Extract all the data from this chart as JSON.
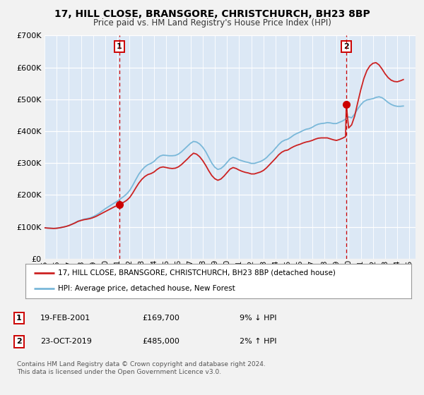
{
  "title": "17, HILL CLOSE, BRANSGORE, CHRISTCHURCH, BH23 8BP",
  "subtitle": "Price paid vs. HM Land Registry's House Price Index (HPI)",
  "background_color": "#f2f2f2",
  "plot_bg": "#dce8f5",
  "ylim": [
    0,
    700000
  ],
  "yticks": [
    0,
    100000,
    200000,
    300000,
    400000,
    500000,
    600000,
    700000
  ],
  "ytick_labels": [
    "£0",
    "£100K",
    "£200K",
    "£300K",
    "£400K",
    "£500K",
    "£600K",
    "£700K"
  ],
  "sale1_year": 2001.13,
  "sale1_price": 169700,
  "sale2_year": 2019.81,
  "sale2_price": 485000,
  "hpi_color": "#7ab8d9",
  "price_color": "#cc2222",
  "marker_color": "#cc0000",
  "legend_label1": "17, HILL CLOSE, BRANSGORE, CHRISTCHURCH, BH23 8BP (detached house)",
  "legend_label2": "HPI: Average price, detached house, New Forest",
  "ann1_num": "1",
  "ann1_date": "19-FEB-2001",
  "ann1_price": "£169,700",
  "ann1_hpi": "9% ↓ HPI",
  "ann2_num": "2",
  "ann2_date": "23-OCT-2019",
  "ann2_price": "£485,000",
  "ann2_hpi": "2% ↑ HPI",
  "footnote": "Contains HM Land Registry data © Crown copyright and database right 2024.\nThis data is licensed under the Open Government Licence v3.0.",
  "hpi_data": [
    [
      1995.0,
      97000
    ],
    [
      1995.25,
      96500
    ],
    [
      1995.5,
      96000
    ],
    [
      1995.75,
      95500
    ],
    [
      1996.0,
      96000
    ],
    [
      1996.25,
      97000
    ],
    [
      1996.5,
      99000
    ],
    [
      1996.75,
      101000
    ],
    [
      1997.0,
      104000
    ],
    [
      1997.25,
      108000
    ],
    [
      1997.5,
      113000
    ],
    [
      1997.75,
      118000
    ],
    [
      1998.0,
      121000
    ],
    [
      1998.25,
      124000
    ],
    [
      1998.5,
      126000
    ],
    [
      1998.75,
      128000
    ],
    [
      1999.0,
      132000
    ],
    [
      1999.25,
      137000
    ],
    [
      1999.5,
      143000
    ],
    [
      1999.75,
      150000
    ],
    [
      2000.0,
      157000
    ],
    [
      2000.25,
      163000
    ],
    [
      2000.5,
      169000
    ],
    [
      2000.75,
      175000
    ],
    [
      2001.0,
      181000
    ],
    [
      2001.25,
      188000
    ],
    [
      2001.5,
      195000
    ],
    [
      2001.75,
      203000
    ],
    [
      2002.0,
      214000
    ],
    [
      2002.25,
      230000
    ],
    [
      2002.5,
      248000
    ],
    [
      2002.75,
      265000
    ],
    [
      2003.0,
      278000
    ],
    [
      2003.25,
      288000
    ],
    [
      2003.5,
      295000
    ],
    [
      2003.75,
      299000
    ],
    [
      2004.0,
      305000
    ],
    [
      2004.25,
      315000
    ],
    [
      2004.5,
      322000
    ],
    [
      2004.75,
      325000
    ],
    [
      2005.0,
      324000
    ],
    [
      2005.25,
      323000
    ],
    [
      2005.5,
      323000
    ],
    [
      2005.75,
      324000
    ],
    [
      2006.0,
      328000
    ],
    [
      2006.25,
      335000
    ],
    [
      2006.5,
      344000
    ],
    [
      2006.75,
      353000
    ],
    [
      2007.0,
      362000
    ],
    [
      2007.25,
      368000
    ],
    [
      2007.5,
      366000
    ],
    [
      2007.75,
      360000
    ],
    [
      2008.0,
      350000
    ],
    [
      2008.25,
      336000
    ],
    [
      2008.5,
      318000
    ],
    [
      2008.75,
      300000
    ],
    [
      2009.0,
      287000
    ],
    [
      2009.25,
      280000
    ],
    [
      2009.5,
      283000
    ],
    [
      2009.75,
      291000
    ],
    [
      2010.0,
      302000
    ],
    [
      2010.25,
      313000
    ],
    [
      2010.5,
      318000
    ],
    [
      2010.75,
      315000
    ],
    [
      2011.0,
      310000
    ],
    [
      2011.25,
      307000
    ],
    [
      2011.5,
      304000
    ],
    [
      2011.75,
      302000
    ],
    [
      2012.0,
      299000
    ],
    [
      2012.25,
      299000
    ],
    [
      2012.5,
      302000
    ],
    [
      2012.75,
      305000
    ],
    [
      2013.0,
      310000
    ],
    [
      2013.25,
      317000
    ],
    [
      2013.5,
      327000
    ],
    [
      2013.75,
      336000
    ],
    [
      2014.0,
      347000
    ],
    [
      2014.25,
      358000
    ],
    [
      2014.5,
      367000
    ],
    [
      2014.75,
      372000
    ],
    [
      2015.0,
      375000
    ],
    [
      2015.25,
      381000
    ],
    [
      2015.5,
      388000
    ],
    [
      2015.75,
      393000
    ],
    [
      2016.0,
      397000
    ],
    [
      2016.25,
      402000
    ],
    [
      2016.5,
      406000
    ],
    [
      2016.75,
      408000
    ],
    [
      2017.0,
      412000
    ],
    [
      2017.25,
      418000
    ],
    [
      2017.5,
      422000
    ],
    [
      2017.75,
      424000
    ],
    [
      2018.0,
      425000
    ],
    [
      2018.25,
      427000
    ],
    [
      2018.5,
      426000
    ],
    [
      2018.75,
      424000
    ],
    [
      2019.0,
      424000
    ],
    [
      2019.25,
      428000
    ],
    [
      2019.5,
      432000
    ],
    [
      2019.75,
      438000
    ],
    [
      2020.0,
      445000
    ],
    [
      2020.25,
      442000
    ],
    [
      2020.5,
      454000
    ],
    [
      2020.75,
      470000
    ],
    [
      2021.0,
      483000
    ],
    [
      2021.25,
      493000
    ],
    [
      2021.5,
      498000
    ],
    [
      2021.75,
      500000
    ],
    [
      2022.0,
      502000
    ],
    [
      2022.25,
      506000
    ],
    [
      2022.5,
      508000
    ],
    [
      2022.75,
      505000
    ],
    [
      2023.0,
      498000
    ],
    [
      2023.25,
      490000
    ],
    [
      2023.5,
      484000
    ],
    [
      2023.75,
      480000
    ],
    [
      2024.0,
      478000
    ],
    [
      2024.25,
      478000
    ],
    [
      2024.5,
      479000
    ]
  ],
  "price_data": [
    [
      1995.0,
      97000
    ],
    [
      1995.25,
      96000
    ],
    [
      1995.5,
      95500
    ],
    [
      1995.75,
      95000
    ],
    [
      1996.0,
      95500
    ],
    [
      1996.25,
      97000
    ],
    [
      1996.5,
      99000
    ],
    [
      1996.75,
      101000
    ],
    [
      1997.0,
      104000
    ],
    [
      1997.25,
      108000
    ],
    [
      1997.5,
      112000
    ],
    [
      1997.75,
      117000
    ],
    [
      1998.0,
      120000
    ],
    [
      1998.25,
      122500
    ],
    [
      1998.5,
      124000
    ],
    [
      1998.75,
      126000
    ],
    [
      1999.0,
      129000
    ],
    [
      1999.25,
      133000
    ],
    [
      1999.5,
      138000
    ],
    [
      1999.75,
      143000
    ],
    [
      2000.0,
      148000
    ],
    [
      2000.25,
      153000
    ],
    [
      2000.5,
      158000
    ],
    [
      2000.75,
      163000
    ],
    [
      2001.0,
      167000
    ],
    [
      2001.13,
      169700
    ],
    [
      2001.25,
      172000
    ],
    [
      2001.5,
      177000
    ],
    [
      2001.75,
      183000
    ],
    [
      2002.0,
      192000
    ],
    [
      2002.25,
      206000
    ],
    [
      2002.5,
      222000
    ],
    [
      2002.75,
      237000
    ],
    [
      2003.0,
      249000
    ],
    [
      2003.25,
      258000
    ],
    [
      2003.5,
      264000
    ],
    [
      2003.75,
      267000
    ],
    [
      2004.0,
      272000
    ],
    [
      2004.25,
      280000
    ],
    [
      2004.5,
      286000
    ],
    [
      2004.75,
      288000
    ],
    [
      2005.0,
      286000
    ],
    [
      2005.25,
      284000
    ],
    [
      2005.5,
      283000
    ],
    [
      2005.75,
      284000
    ],
    [
      2006.0,
      288000
    ],
    [
      2006.25,
      295000
    ],
    [
      2006.5,
      304000
    ],
    [
      2006.75,
      313000
    ],
    [
      2007.0,
      323000
    ],
    [
      2007.25,
      331000
    ],
    [
      2007.5,
      328000
    ],
    [
      2007.75,
      320000
    ],
    [
      2008.0,
      308000
    ],
    [
      2008.25,
      293000
    ],
    [
      2008.5,
      276000
    ],
    [
      2008.75,
      261000
    ],
    [
      2009.0,
      251000
    ],
    [
      2009.25,
      246000
    ],
    [
      2009.5,
      250000
    ],
    [
      2009.75,
      259000
    ],
    [
      2010.0,
      270000
    ],
    [
      2010.25,
      281000
    ],
    [
      2010.5,
      286000
    ],
    [
      2010.75,
      283000
    ],
    [
      2011.0,
      278000
    ],
    [
      2011.25,
      274000
    ],
    [
      2011.5,
      271000
    ],
    [
      2011.75,
      269000
    ],
    [
      2012.0,
      266000
    ],
    [
      2012.25,
      266000
    ],
    [
      2012.5,
      269000
    ],
    [
      2012.75,
      272000
    ],
    [
      2013.0,
      277000
    ],
    [
      2013.25,
      285000
    ],
    [
      2013.5,
      295000
    ],
    [
      2013.75,
      305000
    ],
    [
      2014.0,
      315000
    ],
    [
      2014.25,
      326000
    ],
    [
      2014.5,
      334000
    ],
    [
      2014.75,
      339000
    ],
    [
      2015.0,
      341000
    ],
    [
      2015.25,
      347000
    ],
    [
      2015.5,
      352000
    ],
    [
      2015.75,
      356000
    ],
    [
      2016.0,
      359000
    ],
    [
      2016.25,
      363000
    ],
    [
      2016.5,
      366000
    ],
    [
      2016.75,
      368000
    ],
    [
      2017.0,
      371000
    ],
    [
      2017.25,
      375000
    ],
    [
      2017.5,
      378000
    ],
    [
      2017.75,
      379000
    ],
    [
      2018.0,
      379000
    ],
    [
      2018.25,
      379000
    ],
    [
      2018.5,
      376000
    ],
    [
      2018.75,
      373000
    ],
    [
      2019.0,
      371000
    ],
    [
      2019.25,
      374000
    ],
    [
      2019.5,
      378000
    ],
    [
      2019.75,
      383000
    ],
    [
      2019.81,
      485000
    ],
    [
      2020.0,
      410000
    ],
    [
      2020.25,
      420000
    ],
    [
      2020.5,
      448000
    ],
    [
      2020.75,
      490000
    ],
    [
      2021.0,
      530000
    ],
    [
      2021.25,
      565000
    ],
    [
      2021.5,
      590000
    ],
    [
      2021.75,
      605000
    ],
    [
      2022.0,
      613000
    ],
    [
      2022.25,
      615000
    ],
    [
      2022.5,
      608000
    ],
    [
      2022.75,
      595000
    ],
    [
      2023.0,
      580000
    ],
    [
      2023.25,
      568000
    ],
    [
      2023.5,
      560000
    ],
    [
      2023.75,
      556000
    ],
    [
      2024.0,
      555000
    ],
    [
      2024.25,
      558000
    ],
    [
      2024.5,
      562000
    ]
  ]
}
